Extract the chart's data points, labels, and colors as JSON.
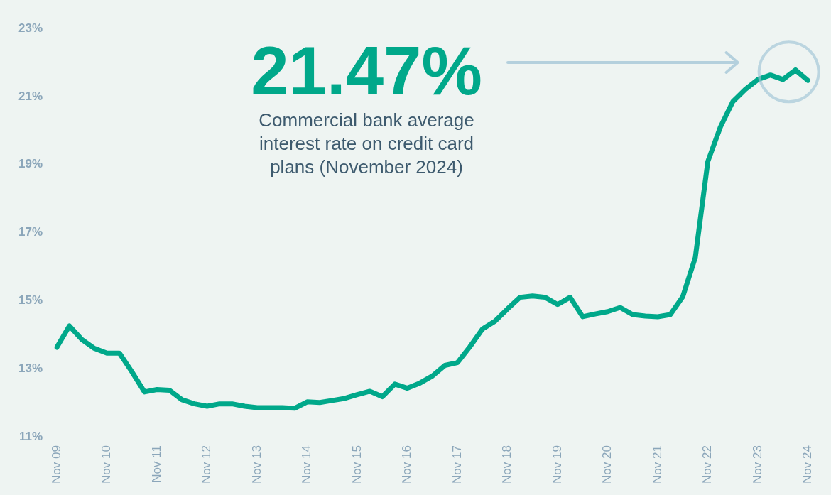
{
  "chart_data": {
    "type": "line",
    "categories": [
      "Nov 09",
      null,
      null,
      null,
      "Nov 10",
      null,
      null,
      null,
      "Nov 11",
      null,
      null,
      null,
      "Nov 12",
      null,
      null,
      null,
      "Nov 13",
      null,
      null,
      null,
      "Nov 14",
      null,
      null,
      null,
      "Nov 15",
      null,
      null,
      null,
      "Nov 16",
      null,
      null,
      null,
      "Nov 17",
      null,
      null,
      null,
      "Nov 18",
      null,
      null,
      null,
      "Nov 19",
      null,
      null,
      null,
      "Nov 20",
      null,
      null,
      null,
      "Nov 21",
      null,
      null,
      null,
      "Nov 22",
      null,
      null,
      null,
      "Nov 23",
      null,
      null,
      null,
      "Nov 24"
    ],
    "series": [
      {
        "color": "#00a88a",
        "values": [
          13.63,
          14.26,
          13.86,
          13.6,
          13.46,
          13.46,
          12.91,
          12.32,
          12.39,
          12.37,
          12.09,
          11.97,
          11.9,
          11.97,
          11.97,
          11.9,
          11.86,
          11.86,
          11.86,
          11.84,
          12.03,
          12.01,
          12.07,
          12.13,
          12.24,
          12.34,
          12.18,
          12.55,
          12.43,
          12.58,
          12.79,
          13.1,
          13.18,
          13.65,
          14.17,
          14.4,
          14.76,
          15.1,
          15.14,
          15.1,
          14.89,
          15.1,
          14.53,
          14.61,
          14.68,
          14.8,
          14.59,
          14.55,
          14.53,
          14.59,
          15.12,
          16.27,
          19.09,
          20.1,
          20.85,
          21.21,
          21.5,
          21.63,
          21.5,
          21.78,
          21.47
        ]
      }
    ],
    "ylim": [
      11,
      23
    ],
    "yticks": [
      {
        "value": 11,
        "label": "11%"
      },
      {
        "value": 13,
        "label": "13%"
      },
      {
        "value": 15,
        "label": "15%"
      },
      {
        "value": 17,
        "label": "17%"
      },
      {
        "value": 19,
        "label": "19%"
      },
      {
        "value": 21,
        "label": "21%"
      },
      {
        "value": 23,
        "label": "23%"
      }
    ],
    "grid": false,
    "legend": false,
    "marker": "none",
    "line_style": "solid",
    "annotations": [
      "21.47%",
      "Commercial bank average interest rate on credit card plans (November 2024)"
    ]
  }
}
